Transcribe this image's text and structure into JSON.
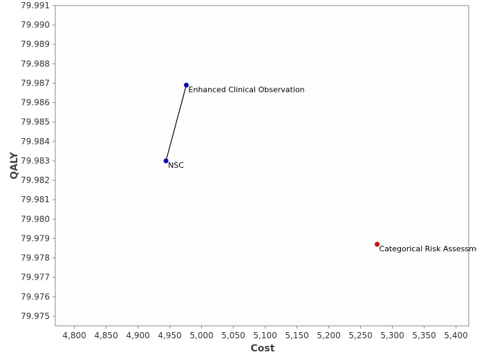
{
  "chart_data": {
    "type": "scatter",
    "xlabel": "Cost",
    "ylabel": "QALY",
    "xlim": [
      4770,
      5420
    ],
    "ylim": [
      79.9745,
      79.991
    ],
    "grid": false,
    "x_ticks": [
      4800,
      4850,
      4900,
      4950,
      5000,
      5050,
      5100,
      5150,
      5200,
      5250,
      5300,
      5350,
      5400
    ],
    "x_tick_labels": [
      "4,800",
      "4,850",
      "4,900",
      "4,950",
      "5,000",
      "5,050",
      "5,100",
      "5,150",
      "5,200",
      "5,250",
      "5,300",
      "5,350",
      "5,400"
    ],
    "y_ticks": [
      79.975,
      79.976,
      79.977,
      79.978,
      79.979,
      79.98,
      79.981,
      79.982,
      79.983,
      79.984,
      79.985,
      79.986,
      79.987,
      79.988,
      79.989,
      79.99,
      79.991
    ],
    "y_tick_labels": [
      "79.975",
      "79.976",
      "79.977",
      "79.978",
      "79.979",
      "79.980",
      "79.981",
      "79.982",
      "79.983",
      "79.984",
      "79.985",
      "79.986",
      "79.987",
      "79.988",
      "79.989",
      "79.990",
      "79.991"
    ],
    "points": [
      {
        "label": "NSC",
        "x": 4944,
        "y": 79.983,
        "color": "#0000cc"
      },
      {
        "label": "Enhanced Clinical Observation",
        "x": 4976,
        "y": 79.9869,
        "color": "#0000cc"
      },
      {
        "label": "Categorical Risk Assessment",
        "x": 5276,
        "y": 79.9787,
        "color": "#e00000"
      }
    ],
    "frontier": [
      "NSC",
      "Enhanced Clinical Observation"
    ],
    "frontier_color": "#000000"
  }
}
